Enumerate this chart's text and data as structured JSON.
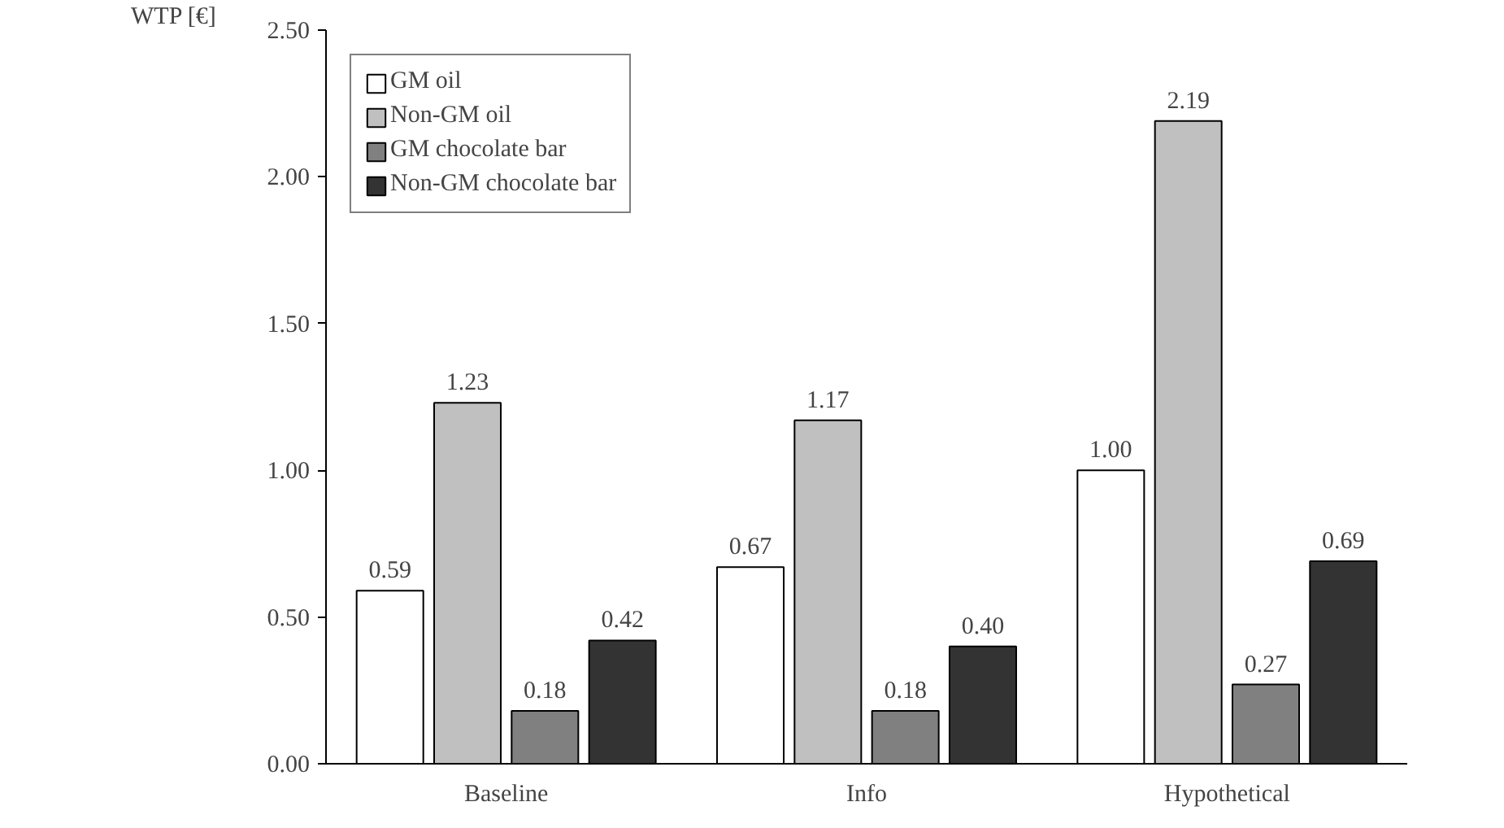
{
  "chart_data": {
    "type": "bar",
    "ylabel": "WTP [€]",
    "categories": [
      "Baseline",
      "Info",
      "Hypothetical"
    ],
    "series": [
      {
        "name": "GM oil",
        "color": "#ffffff",
        "values": [
          0.59,
          0.67,
          1.0
        ]
      },
      {
        "name": "Non-GM oil",
        "color": "#c0c0c0",
        "values": [
          1.23,
          1.17,
          2.19
        ]
      },
      {
        "name": "GM chocolate bar",
        "color": "#808080",
        "values": [
          0.18,
          0.18,
          0.27
        ]
      },
      {
        "name": "Non-GM chocolate bar",
        "color": "#333333",
        "values": [
          0.42,
          0.4,
          0.69
        ]
      }
    ],
    "value_labels": [
      [
        "0.59",
        "0.67",
        "1.00"
      ],
      [
        "1.23",
        "1.17",
        "2.19"
      ],
      [
        "0.18",
        "0.18",
        "0.27"
      ],
      [
        "0.42",
        "0.40",
        "0.69"
      ]
    ],
    "ylim": [
      0,
      2.5
    ],
    "yticks": [
      {
        "value": 0,
        "label": "0.00"
      },
      {
        "value": 0.5,
        "label": "0.50"
      },
      {
        "value": 1,
        "label": "1.00"
      },
      {
        "value": 1.5,
        "label": "1.50"
      },
      {
        "value": 2,
        "label": "2.00"
      },
      {
        "value": 2.5,
        "label": "2.50"
      }
    ],
    "grid": false,
    "legend": "top left"
  }
}
